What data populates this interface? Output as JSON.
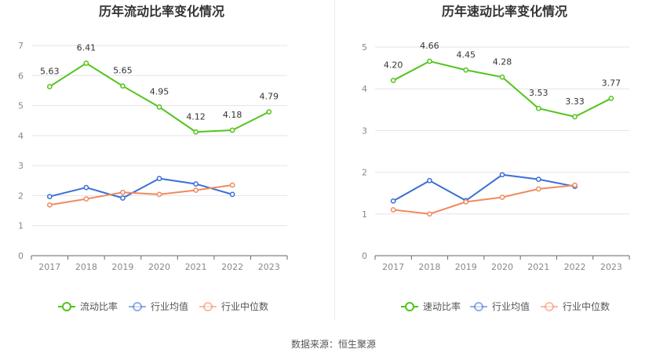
{
  "colors": {
    "company": "#52c41a",
    "avg": "#3b6fd6",
    "median": "#f08a5d",
    "grid": "#e3e3ee",
    "axis": "#666666"
  },
  "source": "数据来源：恒生聚源",
  "chart_data": [
    {
      "type": "line",
      "title": "历年流动比率变化情况",
      "categories": [
        "2017",
        "2018",
        "2019",
        "2020",
        "2021",
        "2022",
        "2023"
      ],
      "ylim": [
        0,
        7
      ],
      "yticks": [
        0,
        1,
        2,
        3,
        4,
        5,
        6,
        7
      ],
      "grid": true,
      "legend_position": "bottom",
      "series": [
        {
          "name": "流动比率",
          "key": "company",
          "values": [
            5.63,
            6.41,
            5.65,
            4.95,
            4.12,
            4.18,
            4.79
          ],
          "labels": [
            "5.63",
            "6.41",
            "5.65",
            "4.95",
            "4.12",
            "4.18",
            "4.79"
          ]
        },
        {
          "name": "行业均值",
          "key": "avg",
          "values": [
            1.97,
            2.27,
            1.92,
            2.57,
            2.39,
            2.04,
            null
          ]
        },
        {
          "name": "行业中位数",
          "key": "median",
          "values": [
            1.69,
            1.89,
            2.11,
            2.04,
            2.18,
            2.35,
            null
          ]
        }
      ]
    },
    {
      "type": "line",
      "title": "历年速动比率变化情况",
      "categories": [
        "2017",
        "2018",
        "2019",
        "2020",
        "2021",
        "2022",
        "2023"
      ],
      "ylim": [
        0,
        5
      ],
      "yticks": [
        0,
        1,
        2,
        3,
        4,
        5
      ],
      "grid": true,
      "legend_position": "bottom",
      "series": [
        {
          "name": "速动比率",
          "key": "company",
          "values": [
            4.2,
            4.66,
            4.45,
            4.28,
            3.53,
            3.33,
            3.77
          ],
          "labels": [
            "4.20",
            "4.66",
            "4.45",
            "4.28",
            "3.53",
            "3.33",
            "3.77"
          ]
        },
        {
          "name": "行业均值",
          "key": "avg",
          "values": [
            1.31,
            1.8,
            1.32,
            1.94,
            1.83,
            1.66,
            null
          ]
        },
        {
          "name": "行业中位数",
          "key": "median",
          "values": [
            1.1,
            1.0,
            1.29,
            1.4,
            1.6,
            1.69,
            null
          ]
        }
      ]
    }
  ]
}
